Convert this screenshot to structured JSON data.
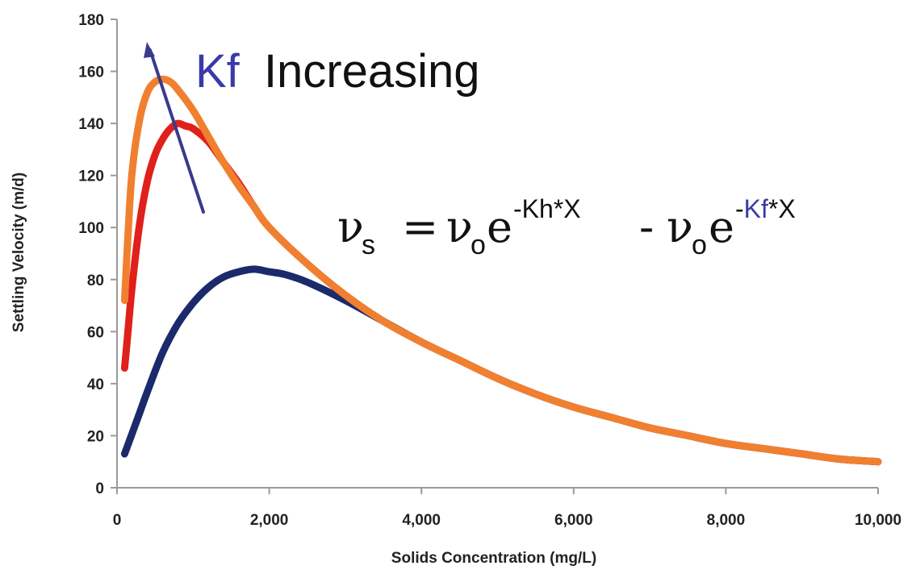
{
  "chart_data": {
    "type": "line",
    "title": "",
    "xlabel": "Solids Concentration (mg/L)",
    "ylabel": "Settling Velocity (m/d)",
    "xlim": [
      0,
      10000
    ],
    "ylim": [
      0,
      180
    ],
    "xticks": [
      0,
      2000,
      4000,
      6000,
      8000,
      10000
    ],
    "xtick_labels": [
      "0",
      "2,000",
      "4,000",
      "6,000",
      "8,000",
      "10,000"
    ],
    "yticks": [
      0,
      20,
      40,
      60,
      80,
      100,
      120,
      140,
      160,
      180
    ],
    "ytick_labels": [
      "0",
      "20",
      "40",
      "60",
      "80",
      "100",
      "120",
      "140",
      "160",
      "180"
    ],
    "grid": false,
    "legend": "none",
    "series": [
      {
        "color": "#1b2a6b",
        "x": [
          100,
          200,
          300,
          400,
          600,
          800,
          1000,
          1200,
          1400,
          1600,
          1800,
          2000,
          2200,
          2500,
          3000,
          3500,
          4000,
          4500,
          5000,
          5500,
          6000,
          6500,
          7000,
          7500,
          8000,
          8500,
          9000,
          9500,
          10000
        ],
        "values": [
          13,
          21,
          29,
          37,
          52,
          63,
          71,
          77,
          81,
          83,
          84,
          83,
          82,
          79,
          72,
          64,
          56,
          49,
          42,
          36,
          31,
          27,
          23,
          20,
          17,
          15,
          13,
          11,
          10
        ]
      },
      {
        "color": "#e0201a",
        "x": [
          100,
          150,
          200,
          300,
          400,
          500,
          600,
          700,
          800,
          900,
          1000,
          1200,
          1400,
          1600,
          1800,
          2000,
          2500,
          3000,
          3500,
          4000,
          4500,
          5000,
          5500,
          6000,
          6500,
          7000,
          7500,
          8000,
          8500,
          9000,
          9500,
          10000
        ],
        "values": [
          46,
          62,
          78,
          102,
          118,
          128,
          134,
          138,
          140,
          139,
          138,
          133,
          125,
          117,
          108,
          100,
          86,
          74,
          64,
          56,
          49,
          42,
          36,
          31,
          27,
          23,
          20,
          17,
          15,
          13,
          11,
          10
        ]
      },
      {
        "color": "#f08030",
        "x": [
          100,
          150,
          200,
          300,
          400,
          500,
          600,
          700,
          800,
          1000,
          1200,
          1400,
          1600,
          1800,
          2000,
          2500,
          3000,
          3500,
          4000,
          4500,
          5000,
          5500,
          6000,
          6500,
          7000,
          7500,
          8000,
          8500,
          9000,
          9500,
          10000
        ],
        "values": [
          72,
          100,
          122,
          142,
          152,
          156,
          157,
          156,
          153,
          145,
          135,
          125,
          116,
          108,
          100,
          86,
          74,
          64,
          56,
          49,
          42,
          36,
          31,
          27,
          23,
          20,
          17,
          15,
          13,
          11,
          10
        ]
      }
    ],
    "annotations": {
      "arrow_color": "#3a3a8c",
      "kf_color": "#3a3aa8",
      "label_kf": "Kf",
      "label_increasing": "Increasing",
      "equation": {
        "v": "ν",
        "sub_s": "s",
        "equals": "=",
        "sub_o": "o",
        "e": "e",
        "sup_1": "-Kh*X",
        "minus": "-",
        "sup_2_prefix": "-",
        "sup_2_kf": "Kf",
        "sup_2_suffix": "*X"
      }
    }
  }
}
